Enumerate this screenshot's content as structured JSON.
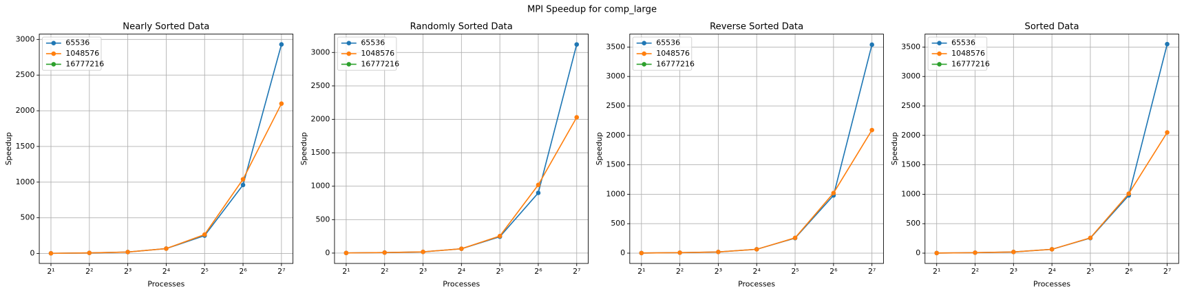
{
  "title": "MPI Speedup for comp_large",
  "chart_data": [
    {
      "type": "line",
      "title": "Nearly Sorted Data",
      "xlabel": "Processes",
      "ylabel": "Speedup",
      "x": [
        2,
        4,
        8,
        16,
        32,
        64,
        128
      ],
      "xscale": "log",
      "grid": true,
      "legend": "upper left",
      "xlim": [
        1.62,
        157.6
      ],
      "xticks": [
        {
          "value": 2,
          "label": "2¹"
        },
        {
          "value": 4,
          "label": "2²"
        },
        {
          "value": 8,
          "label": "2³"
        },
        {
          "value": 16,
          "label": "2⁴"
        },
        {
          "value": 32,
          "label": "2⁵"
        },
        {
          "value": 64,
          "label": "2⁶"
        },
        {
          "value": 128,
          "label": "2⁷"
        }
      ],
      "ylim": [
        -140,
        3075
      ],
      "yticks": [
        0,
        500,
        1000,
        1500,
        2000,
        2500,
        3000
      ],
      "series": [
        {
          "name": "65536",
          "color": "#1f77b4",
          "values": [
            2,
            8,
            20,
            68,
            250,
            960,
            2930
          ]
        },
        {
          "name": "1048576",
          "color": "#ff7f0e",
          "values": [
            2,
            8,
            20,
            68,
            265,
            1040,
            2100
          ]
        },
        {
          "name": "16777216",
          "color": "#2ca02c",
          "values": [
            null,
            null,
            null,
            null,
            null,
            null,
            null
          ]
        }
      ]
    },
    {
      "type": "line",
      "title": "Randomly Sorted Data",
      "xlabel": "Processes",
      "ylabel": "Speedup",
      "x": [
        2,
        4,
        8,
        16,
        32,
        64,
        128
      ],
      "xscale": "log",
      "grid": true,
      "legend": "upper left",
      "xlim": [
        1.62,
        157.6
      ],
      "xticks": [
        {
          "value": 2,
          "label": "2¹"
        },
        {
          "value": 4,
          "label": "2²"
        },
        {
          "value": 8,
          "label": "2³"
        },
        {
          "value": 16,
          "label": "2⁴"
        },
        {
          "value": 32,
          "label": "2⁵"
        },
        {
          "value": 64,
          "label": "2⁶"
        },
        {
          "value": 128,
          "label": "2⁷"
        }
      ],
      "ylim": [
        -155,
        3275
      ],
      "yticks": [
        0,
        500,
        1000,
        1500,
        2000,
        2500,
        3000
      ],
      "series": [
        {
          "name": "65536",
          "color": "#1f77b4",
          "values": [
            2,
            8,
            18,
            65,
            245,
            900,
            3120
          ]
        },
        {
          "name": "1048576",
          "color": "#ff7f0e",
          "values": [
            2,
            8,
            18,
            65,
            255,
            1020,
            2030
          ]
        },
        {
          "name": "16777216",
          "color": "#2ca02c",
          "values": [
            null,
            null,
            null,
            null,
            null,
            null,
            null
          ]
        }
      ]
    },
    {
      "type": "line",
      "title": "Reverse Sorted Data",
      "xlabel": "Processes",
      "ylabel": "Speedup",
      "x": [
        2,
        4,
        8,
        16,
        32,
        64,
        128
      ],
      "xscale": "log",
      "grid": true,
      "legend": "upper left",
      "xlim": [
        1.62,
        157.6
      ],
      "xticks": [
        {
          "value": 2,
          "label": "2¹"
        },
        {
          "value": 4,
          "label": "2²"
        },
        {
          "value": 8,
          "label": "2³"
        },
        {
          "value": 16,
          "label": "2⁴"
        },
        {
          "value": 32,
          "label": "2⁵"
        },
        {
          "value": 64,
          "label": "2⁶"
        },
        {
          "value": 128,
          "label": "2⁷"
        }
      ],
      "ylim": [
        -175,
        3720
      ],
      "yticks": [
        0,
        500,
        1000,
        1500,
        2000,
        2500,
        3000,
        3500
      ],
      "series": [
        {
          "name": "65536",
          "color": "#1f77b4",
          "values": [
            2,
            8,
            20,
            65,
            255,
            980,
            3540
          ]
        },
        {
          "name": "1048576",
          "color": "#ff7f0e",
          "values": [
            2,
            8,
            20,
            65,
            260,
            1020,
            2090
          ]
        },
        {
          "name": "16777216",
          "color": "#2ca02c",
          "values": [
            null,
            null,
            null,
            null,
            null,
            null,
            null
          ]
        }
      ]
    },
    {
      "type": "line",
      "title": "Sorted Data",
      "xlabel": "Processes",
      "ylabel": "Speedup",
      "x": [
        2,
        4,
        8,
        16,
        32,
        64,
        128
      ],
      "xscale": "log",
      "grid": true,
      "legend": "upper left",
      "xlim": [
        1.62,
        157.6
      ],
      "xticks": [
        {
          "value": 2,
          "label": "2¹"
        },
        {
          "value": 4,
          "label": "2²"
        },
        {
          "value": 8,
          "label": "2³"
        },
        {
          "value": 16,
          "label": "2⁴"
        },
        {
          "value": 32,
          "label": "2⁵"
        },
        {
          "value": 64,
          "label": "2⁶"
        },
        {
          "value": 128,
          "label": "2⁷"
        }
      ],
      "ylim": [
        -175,
        3720
      ],
      "yticks": [
        0,
        500,
        1000,
        1500,
        2000,
        2500,
        3000,
        3500
      ],
      "series": [
        {
          "name": "65536",
          "color": "#1f77b4",
          "values": [
            2,
            8,
            20,
            65,
            255,
            980,
            3550
          ]
        },
        {
          "name": "1048576",
          "color": "#ff7f0e",
          "values": [
            2,
            8,
            20,
            65,
            260,
            1010,
            2050
          ]
        },
        {
          "name": "16777216",
          "color": "#2ca02c",
          "values": [
            null,
            null,
            null,
            null,
            null,
            null,
            null
          ]
        }
      ]
    }
  ]
}
